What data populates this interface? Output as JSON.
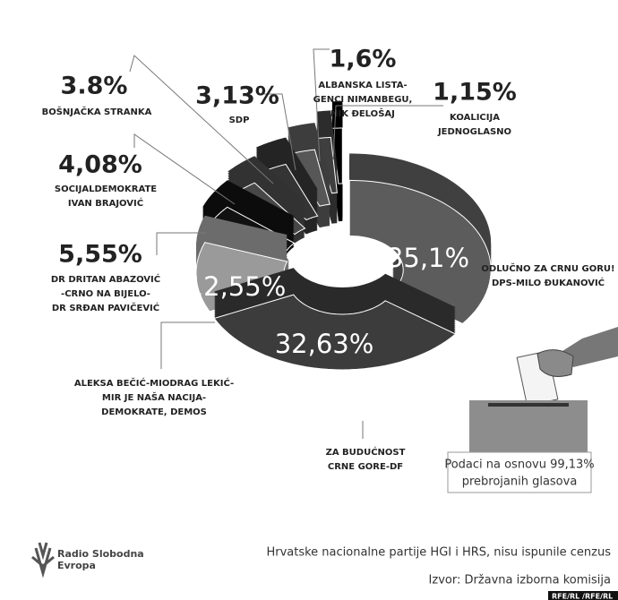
{
  "chart_data": {
    "type": "pie",
    "categories": [
      [
        "ODLUČNO ZA CRNU GORU!",
        "DPS-MILO ĐUKANOVIĆ"
      ],
      [
        "ZA BUDUĆNOST",
        "CRNE GORE-DF"
      ],
      [
        "ALEKSA BEČIĆ-MIODRAG LEKIĆ-",
        "MIR JE NAŠA NACIJA-",
        "DEMOKRATE, DEMOS"
      ],
      [
        "DR DRITAN ABAZOVIĆ",
        "-CRNO NA BIJELO-",
        "DR SRĐAN PAVIČEVIĆ"
      ],
      [
        "SOCIJALDEMOKRATE",
        "IVAN BRAJOVIĆ"
      ],
      [
        "BOŠNJAČKA STRANKA"
      ],
      [
        "SDP"
      ],
      [
        "ALBANSKA LISTA-",
        "GENCI NIMANBEGU,",
        "NIK ĐELOŠAJ"
      ],
      [
        "KOALICIJA",
        "JEDNOGLASNO"
      ]
    ],
    "values": [
      35.1,
      32.63,
      12.55,
      5.55,
      4.08,
      3.8,
      3.13,
      1.6,
      1.15
    ],
    "value_labels": [
      "35,1%",
      "32,63%",
      "12,55%",
      "5,55%",
      "4,08%",
      "3.8%",
      "3,13%",
      "1,6%",
      "1,15%"
    ],
    "colors": [
      "#5c5c5c",
      "#3c3c3c",
      "#9a9a9a",
      "#111111",
      "#474747",
      "#343434",
      "#575757",
      "#3f3f3f",
      "#000000"
    ],
    "note": [
      "Podaci na osnovu 99,13%",
      "prebrojanih glasova"
    ],
    "footnote": "Hrvatske nacionalne partije HGI i HRS, nisu ispunile cenzus",
    "source": "Izvor: Državna izborna komisija",
    "logo": [
      "Radio Slobodna",
      "Evropa"
    ],
    "credit": "RFE/RL /RFE/RL"
  }
}
